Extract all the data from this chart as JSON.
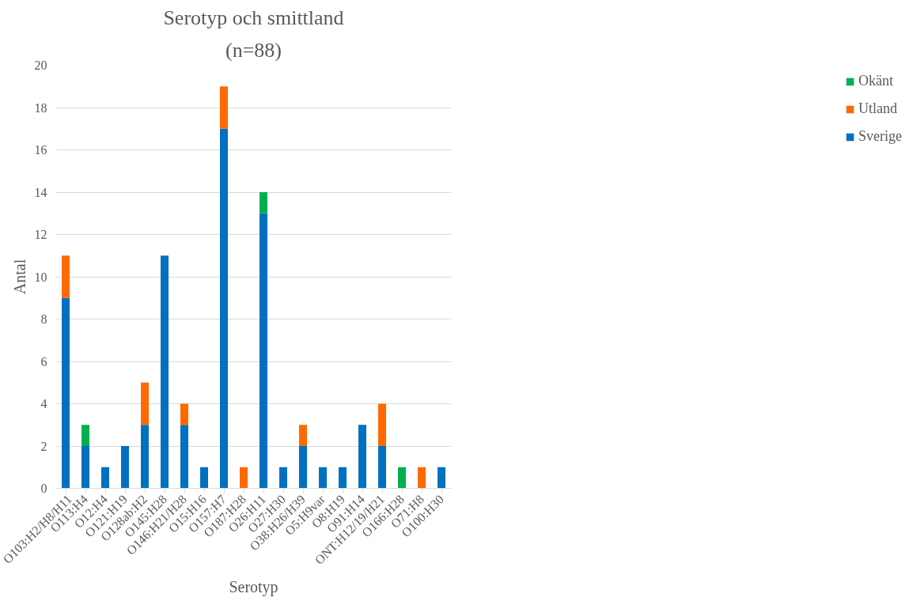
{
  "chart_data": {
    "type": "bar",
    "title": "Serotyp och smittland",
    "subtitle": "(n=88)",
    "xlabel": "Serotyp",
    "ylabel": "Antal",
    "categories": [
      "O103:H2/H8/H11",
      "O113:H4",
      "O12:H4",
      "O121:H19",
      "O128ab:H2",
      "O145:H28",
      "O146:H21/H28",
      "O15:H16",
      "O157:H7",
      "O187:H28",
      "O26:H11",
      "O27:H30",
      "O38:H26/H39",
      "O5:H9var",
      "O8:H19",
      "O91:H14",
      "ONT:H12/19/H21",
      "O166:H28",
      "O71:H8",
      "O100:H30"
    ],
    "stacked": true,
    "series": [
      {
        "name": "Sverige",
        "color": "#0070c0",
        "values": [
          9,
          2,
          1,
          2,
          3,
          11,
          3,
          1,
          17,
          0,
          13,
          1,
          2,
          1,
          1,
          3,
          2,
          0,
          0,
          1
        ]
      },
      {
        "name": "Utland",
        "color": "#ff6a00",
        "values": [
          2,
          0,
          0,
          0,
          2,
          0,
          1,
          0,
          2,
          1,
          0,
          0,
          1,
          0,
          0,
          0,
          2,
          0,
          1,
          0
        ]
      },
      {
        "name": "Okänt",
        "color": "#00b050",
        "values": [
          0,
          1,
          0,
          0,
          0,
          0,
          0,
          0,
          0,
          0,
          1,
          0,
          0,
          0,
          0,
          0,
          0,
          1,
          0,
          0
        ]
      }
    ],
    "ylim": [
      0,
      20
    ],
    "yticks": [
      0,
      2,
      4,
      6,
      8,
      10,
      12,
      14,
      16,
      18,
      20
    ],
    "grid": "y",
    "legend": "right"
  }
}
